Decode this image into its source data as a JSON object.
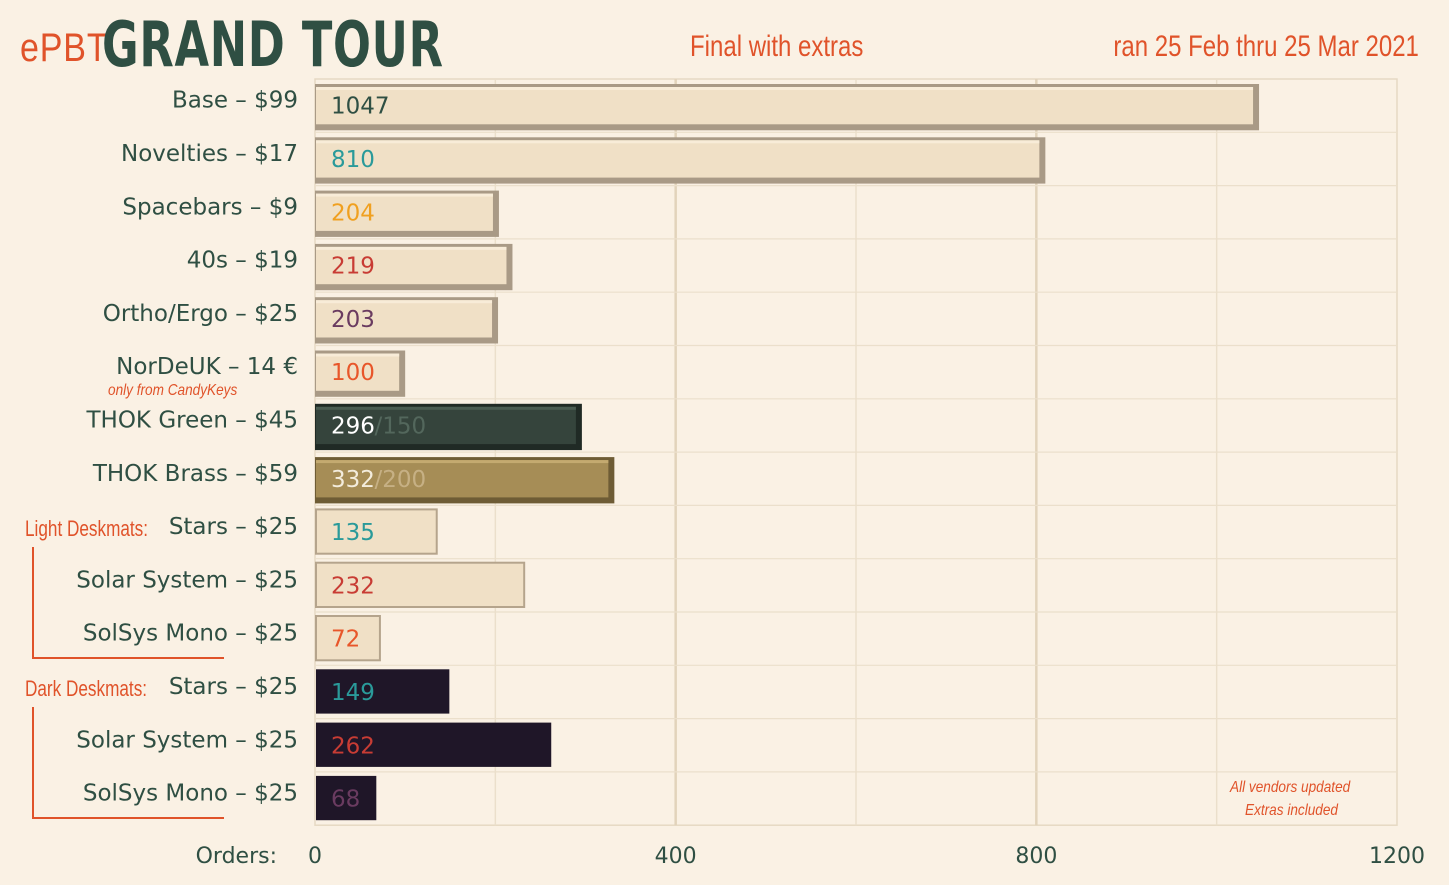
{
  "header": {
    "prefix": "ePBT",
    "title": "GRAND TOUR",
    "subtitle": "Final with extras",
    "dates": "ran 25 Feb thru 25 Mar 2021"
  },
  "notes": {
    "nordeuk": "only from CandyKeys",
    "footer_line1": "All vendors updated",
    "footer_line2": "Extras included"
  },
  "groups": {
    "light": "Light Deskmats:",
    "dark": "Dark Deskmats:"
  },
  "colors": {
    "background": "#faf1e4",
    "accent": "#e0532a",
    "text": "#2f4f43",
    "beige_bar": "#f0e0c6",
    "green_bar": "#2f3c36",
    "brass_bar": "#9c8550",
    "dark_bar": "#1f1628"
  },
  "chart_data": {
    "type": "bar",
    "orientation": "horizontal",
    "xlabel": "Orders:",
    "xlim": [
      0,
      1200
    ],
    "xticks": [
      0,
      400,
      800,
      1200
    ],
    "grid": true,
    "categories": [
      "Base – $99",
      "Novelties – $17",
      "Spacebars – $9",
      "40s – $19",
      "Ortho/Ergo – $25",
      "NorDeUK – 14 €",
      "THOK Green – $45",
      "THOK Brass – $59",
      "Stars – $25",
      "Solar System – $25",
      "SolSys Mono – $25",
      "Stars – $25",
      "Solar System – $25",
      "SolSys Mono – $25"
    ],
    "values": [
      1047,
      810,
      204,
      219,
      203,
      100,
      296,
      332,
      135,
      232,
      72,
      149,
      262,
      68
    ],
    "labels": [
      "1047",
      "810",
      "204",
      "219",
      "203",
      "100",
      "296",
      "332",
      "135",
      "232",
      "72",
      "149",
      "262",
      "68"
    ],
    "limit_labels": [
      "",
      "",
      "",
      "",
      "",
      "",
      "/150",
      "/200",
      "",
      "",
      "",
      "",
      "",
      ""
    ],
    "styles": [
      "keycap",
      "keycap",
      "keycap",
      "keycap",
      "keycap",
      "keycap",
      "green",
      "brass",
      "mat-light",
      "mat-light",
      "mat-light",
      "mat-dark",
      "mat-dark",
      "mat-dark"
    ],
    "label_colors": [
      "#2f4f43",
      "#2a9a9a",
      "#f0a020",
      "#c83c34",
      "#6a3b60",
      "#e8562a",
      "#ffffff",
      "#f3ecdc",
      "#2a9a9a",
      "#c83c34",
      "#e8562a",
      "#2a9a9a",
      "#c83c34",
      "#6a3b60"
    ]
  }
}
